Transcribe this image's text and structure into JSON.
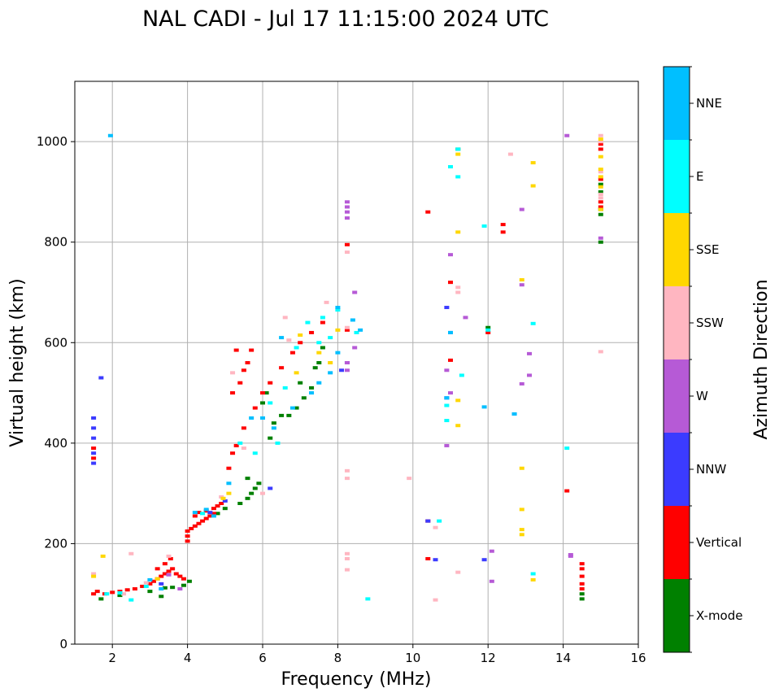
{
  "chart_data": {
    "type": "scatter",
    "title": "NAL CADI - Jul 17 11:15:00 2024 UTC",
    "xlabel": "Frequency (MHz)",
    "ylabel": "Virtual height (km)",
    "xlim": [
      1,
      16
    ],
    "ylim": [
      0,
      1120
    ],
    "xticks": [
      2,
      4,
      6,
      8,
      10,
      12,
      14,
      16
    ],
    "yticks": [
      0,
      200,
      400,
      600,
      800,
      1000
    ],
    "grid": true,
    "colorbar": {
      "title": "Azimuth Direction",
      "categories": [
        "X-mode",
        "Vertical",
        "NNW",
        "W",
        "SSW",
        "SSE",
        "E",
        "NNE"
      ],
      "colors": [
        "#008000",
        "#ff0000",
        "#3b3bff",
        "#b65ad6",
        "#ffb6c1",
        "#ffd700",
        "#00ffff",
        "#00bfff"
      ]
    },
    "series": [
      {
        "name": "X-mode",
        "points": [
          [
            1.7,
            90
          ],
          [
            2.2,
            97
          ],
          [
            3.0,
            105
          ],
          [
            3.4,
            112
          ],
          [
            3.6,
            113
          ],
          [
            3.9,
            117
          ],
          [
            4.05,
            125
          ],
          [
            4.8,
            260
          ],
          [
            5.0,
            270
          ],
          [
            5.4,
            280
          ],
          [
            5.6,
            290
          ],
          [
            5.7,
            300
          ],
          [
            5.8,
            310
          ],
          [
            5.6,
            330
          ],
          [
            5.9,
            320
          ],
          [
            6.2,
            410
          ],
          [
            6.3,
            440
          ],
          [
            6.5,
            455
          ],
          [
            6.7,
            455
          ],
          [
            6.9,
            470
          ],
          [
            7.1,
            490
          ],
          [
            7.3,
            510
          ],
          [
            7.4,
            550
          ],
          [
            7.5,
            560
          ],
          [
            7.6,
            590
          ],
          [
            6.1,
            500
          ],
          [
            6.0,
            480
          ],
          [
            7.0,
            520
          ],
          [
            14.5,
            90
          ],
          [
            14.5,
            100
          ],
          [
            15.0,
            800
          ],
          [
            15.0,
            855
          ],
          [
            15.0,
            865
          ],
          [
            15.0,
            900
          ],
          [
            15.0,
            915
          ],
          [
            11.2,
            985
          ],
          [
            12.0,
            630
          ],
          [
            3.3,
            95
          ]
        ]
      },
      {
        "name": "Vertical",
        "points": [
          [
            1.5,
            100
          ],
          [
            1.6,
            105
          ],
          [
            1.8,
            100
          ],
          [
            2.0,
            103
          ],
          [
            2.2,
            105
          ],
          [
            2.4,
            108
          ],
          [
            2.6,
            110
          ],
          [
            2.8,
            115
          ],
          [
            3.0,
            120
          ],
          [
            3.1,
            125
          ],
          [
            3.2,
            130
          ],
          [
            3.3,
            135
          ],
          [
            3.4,
            140
          ],
          [
            3.5,
            145
          ],
          [
            3.6,
            150
          ],
          [
            3.7,
            140
          ],
          [
            3.8,
            135
          ],
          [
            3.9,
            130
          ],
          [
            3.2,
            150
          ],
          [
            3.4,
            160
          ],
          [
            3.55,
            170
          ],
          [
            4.0,
            205
          ],
          [
            4.0,
            215
          ],
          [
            4.0,
            225
          ],
          [
            4.1,
            230
          ],
          [
            4.2,
            235
          ],
          [
            4.3,
            240
          ],
          [
            4.4,
            245
          ],
          [
            4.5,
            250
          ],
          [
            4.6,
            255
          ],
          [
            4.7,
            260
          ],
          [
            4.2,
            255
          ],
          [
            4.3,
            262
          ],
          [
            4.5,
            265
          ],
          [
            4.7,
            270
          ],
          [
            4.8,
            275
          ],
          [
            4.9,
            280
          ],
          [
            5.1,
            350
          ],
          [
            5.2,
            380
          ],
          [
            5.3,
            395
          ],
          [
            5.2,
            500
          ],
          [
            5.4,
            520
          ],
          [
            5.5,
            545
          ],
          [
            5.6,
            560
          ],
          [
            5.7,
            585
          ],
          [
            5.3,
            585
          ],
          [
            5.8,
            470
          ],
          [
            6.0,
            500
          ],
          [
            6.2,
            520
          ],
          [
            6.5,
            550
          ],
          [
            6.8,
            580
          ],
          [
            7.0,
            600
          ],
          [
            7.3,
            620
          ],
          [
            7.6,
            640
          ],
          [
            1.5,
            370
          ],
          [
            1.5,
            390
          ],
          [
            8.25,
            795
          ],
          [
            8.25,
            625
          ],
          [
            10.4,
            860
          ],
          [
            11.0,
            720
          ],
          [
            11.0,
            565
          ],
          [
            12.0,
            620
          ],
          [
            12.4,
            835
          ],
          [
            12.4,
            820
          ],
          [
            14.1,
            305
          ],
          [
            14.5,
            110
          ],
          [
            14.5,
            120
          ],
          [
            14.5,
            135
          ],
          [
            14.5,
            150
          ],
          [
            14.5,
            160
          ],
          [
            15.0,
            870
          ],
          [
            15.0,
            880
          ],
          [
            15.0,
            925
          ],
          [
            15.0,
            985
          ],
          [
            15.0,
            995
          ],
          [
            10.4,
            245
          ],
          [
            10.4,
            170
          ],
          [
            5.5,
            430
          ]
        ]
      },
      {
        "name": "NNW",
        "points": [
          [
            1.5,
            450
          ],
          [
            1.5,
            430
          ],
          [
            1.5,
            410
          ],
          [
            1.5,
            380
          ],
          [
            1.5,
            360
          ],
          [
            1.7,
            530
          ],
          [
            3.3,
            120
          ],
          [
            4.6,
            262
          ],
          [
            5.0,
            285
          ],
          [
            6.2,
            310
          ],
          [
            8.1,
            545
          ],
          [
            8.25,
            560
          ],
          [
            10.9,
            670
          ],
          [
            11.0,
            620
          ],
          [
            12.7,
            458
          ],
          [
            11.9,
            168
          ],
          [
            10.6,
            168
          ],
          [
            10.9,
            490
          ],
          [
            10.4,
            245
          ]
        ]
      },
      {
        "name": "W",
        "points": [
          [
            8.25,
            880
          ],
          [
            8.25,
            870
          ],
          [
            8.25,
            860
          ],
          [
            8.25,
            848
          ],
          [
            8.25,
            560
          ],
          [
            8.25,
            545
          ],
          [
            8.45,
            700
          ],
          [
            8.45,
            590
          ],
          [
            10.9,
            395
          ],
          [
            10.9,
            545
          ],
          [
            11.0,
            775
          ],
          [
            11.0,
            500
          ],
          [
            11.4,
            650
          ],
          [
            12.1,
            125
          ],
          [
            12.1,
            185
          ],
          [
            12.9,
            865
          ],
          [
            12.9,
            715
          ],
          [
            12.9,
            518
          ],
          [
            13.1,
            578
          ],
          [
            13.1,
            535
          ],
          [
            14.1,
            1012
          ],
          [
            14.2,
            178
          ],
          [
            14.2,
            175
          ],
          [
            15.0,
            808
          ],
          [
            3.8,
            110
          ],
          [
            3.5,
            138
          ]
        ]
      },
      {
        "name": "SSW",
        "points": [
          [
            8.25,
            345
          ],
          [
            8.25,
            330
          ],
          [
            8.25,
            180
          ],
          [
            8.25,
            170
          ],
          [
            8.25,
            148
          ],
          [
            8.25,
            780
          ],
          [
            8.25,
            630
          ],
          [
            11.2,
            710
          ],
          [
            11.2,
            700
          ],
          [
            11.2,
            143
          ],
          [
            10.6,
            88
          ],
          [
            10.6,
            232
          ],
          [
            12.6,
            975
          ],
          [
            15.0,
            1012
          ],
          [
            15.0,
            1000
          ],
          [
            15.0,
            940
          ],
          [
            15.0,
            895
          ],
          [
            15.0,
            888
          ],
          [
            15.0,
            582
          ],
          [
            6.7,
            605
          ],
          [
            7.7,
            680
          ],
          [
            5.2,
            540
          ],
          [
            5.5,
            390
          ],
          [
            6.0,
            300
          ],
          [
            6.6,
            650
          ],
          [
            1.5,
            140
          ],
          [
            2.5,
            180
          ],
          [
            3.5,
            175
          ],
          [
            4.9,
            293
          ],
          [
            2.3,
            100
          ],
          [
            2.9,
            122
          ],
          [
            9.9,
            330
          ]
        ]
      },
      {
        "name": "SSE",
        "points": [
          [
            1.5,
            135
          ],
          [
            1.75,
            175
          ],
          [
            11.2,
            820
          ],
          [
            11.2,
            485
          ],
          [
            11.2,
            435
          ],
          [
            11.2,
            975
          ],
          [
            12.9,
            725
          ],
          [
            12.9,
            350
          ],
          [
            12.9,
            268
          ],
          [
            12.9,
            228
          ],
          [
            12.9,
            218
          ],
          [
            13.2,
            958
          ],
          [
            13.2,
            912
          ],
          [
            13.2,
            128
          ],
          [
            15.0,
            930
          ],
          [
            15.0,
            910
          ],
          [
            15.0,
            1005
          ],
          [
            15.0,
            970
          ],
          [
            7.0,
            615
          ],
          [
            7.5,
            580
          ],
          [
            7.8,
            560
          ],
          [
            8.0,
            625
          ],
          [
            6.9,
            540
          ],
          [
            5.1,
            300
          ],
          [
            4.95,
            290
          ],
          [
            3.2,
            130
          ],
          [
            15.0,
            945
          ],
          [
            15.0,
            865
          ]
        ]
      },
      {
        "name": "E",
        "points": [
          [
            11.2,
            930
          ],
          [
            11.0,
            950
          ],
          [
            11.9,
            832
          ],
          [
            12.0,
            625
          ],
          [
            13.2,
            638
          ],
          [
            13.2,
            140
          ],
          [
            14.1,
            390
          ],
          [
            10.9,
            475
          ],
          [
            10.9,
            445
          ],
          [
            11.3,
            535
          ],
          [
            8.5,
            620
          ],
          [
            8.8,
            90
          ],
          [
            10.7,
            245
          ],
          [
            5.4,
            400
          ],
          [
            5.8,
            380
          ],
          [
            6.4,
            400
          ],
          [
            6.2,
            480
          ],
          [
            6.6,
            510
          ],
          [
            7.2,
            640
          ],
          [
            7.6,
            650
          ],
          [
            8.0,
            665
          ],
          [
            7.5,
            600
          ],
          [
            6.9,
            590
          ],
          [
            7.8,
            610
          ],
          [
            2.5,
            88
          ],
          [
            2.9,
            115
          ],
          [
            4.4,
            260
          ],
          [
            2.2,
            102
          ],
          [
            1.85,
            100
          ],
          [
            11.2,
            985
          ]
        ]
      },
      {
        "name": "NNE",
        "points": [
          [
            1.95,
            1012
          ],
          [
            8.0,
            670
          ],
          [
            8.4,
            645
          ],
          [
            8.6,
            625
          ],
          [
            10.9,
            490
          ],
          [
            11.0,
            620
          ],
          [
            11.9,
            472
          ],
          [
            12.7,
            458
          ],
          [
            6.3,
            430
          ],
          [
            6.8,
            470
          ],
          [
            7.3,
            500
          ],
          [
            7.5,
            520
          ],
          [
            6.5,
            610
          ],
          [
            5.1,
            320
          ],
          [
            4.7,
            255
          ],
          [
            4.5,
            268
          ],
          [
            4.2,
            262
          ],
          [
            3.0,
            128
          ],
          [
            3.3,
            110
          ],
          [
            5.7,
            450
          ],
          [
            7.8,
            540
          ],
          [
            8.0,
            580
          ],
          [
            6.0,
            450
          ]
        ]
      }
    ]
  }
}
